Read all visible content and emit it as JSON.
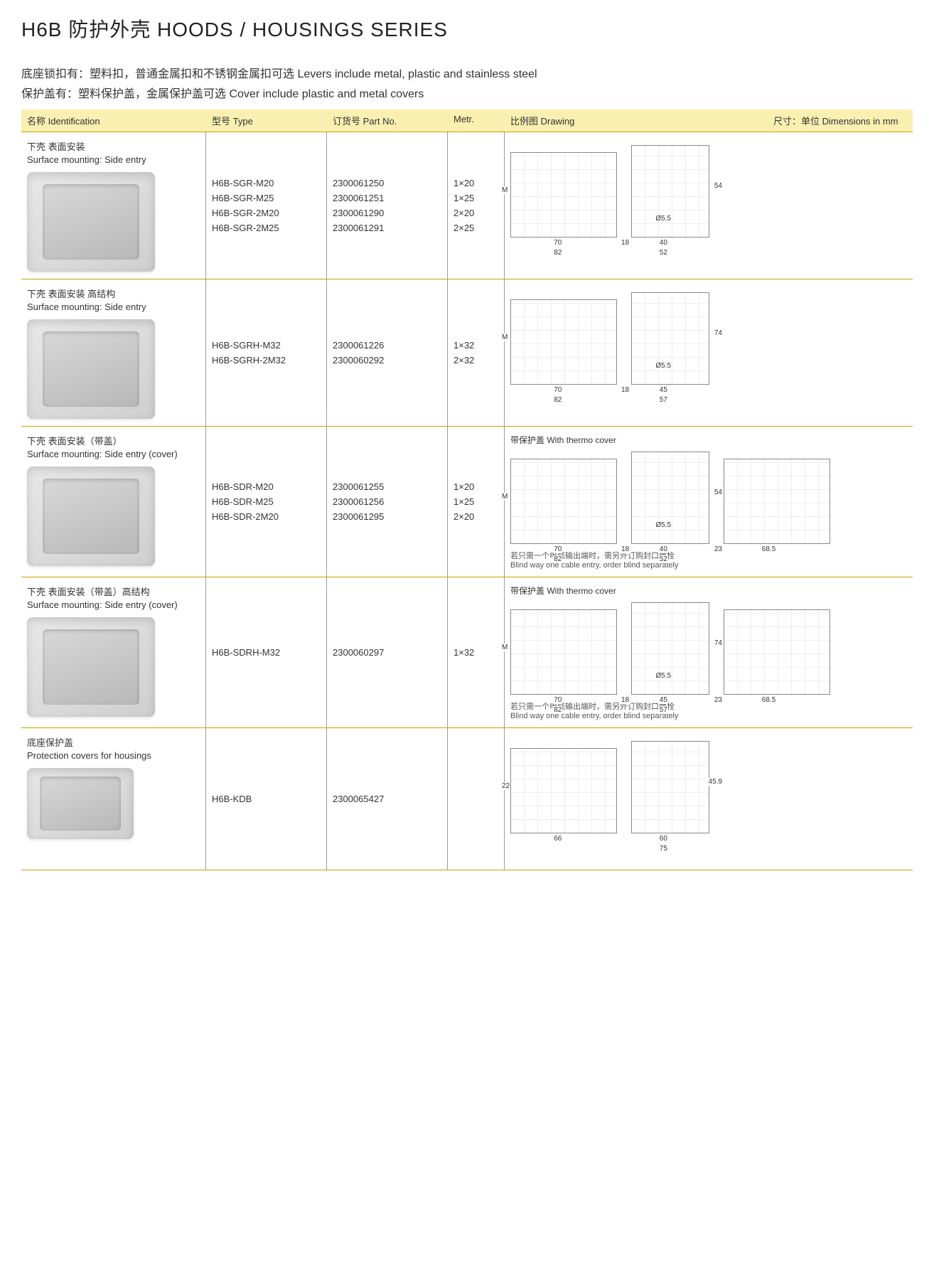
{
  "title": "H6B 防护外壳  HOODS / HOUSINGS SERIES",
  "subtitle1_cn": "底座锁扣有：塑料扣，普通金属扣和不锈钢金属扣可选",
  "subtitle1_en": "Levers include metal, plastic and stainless steel",
  "subtitle2_cn": "保护盖有：塑料保护盖，金属保护盖可选",
  "subtitle2_en": "Cover include plastic and metal covers",
  "columns": {
    "ident": "名称 Identification",
    "type": "型号 Type",
    "partno": "订货号 Part No.",
    "metr": "Metr.",
    "drawing": "比例图 Drawing",
    "dims": "尺寸：单位 Dimensions in mm"
  },
  "rows": [
    {
      "ident_cn": "下壳 表面安装",
      "ident_en": "Surface mounting: Side entry",
      "types": [
        "H6B-SGR-M20",
        "H6B-SGR-M25",
        "H6B-SGR-2M20",
        "H6B-SGR-2M25"
      ],
      "parts": [
        "2300061250",
        "2300061251",
        "2300061290",
        "2300061291"
      ],
      "metrs": [
        "1×20",
        "1×25",
        "2×20",
        "2×25"
      ],
      "thermo": "",
      "front_dims": {
        "w1": "70",
        "w2": "82",
        "h": "M"
      },
      "side_dims": {
        "w1": "40",
        "w2": "52",
        "offset": "18",
        "h": "54",
        "dia": "Ø5.5"
      },
      "note_cn": "",
      "note_en": ""
    },
    {
      "ident_cn": "下壳 表面安装 高结构",
      "ident_en": "Surface mounting: Side entry",
      "types": [
        "H6B-SGRH-M32",
        "H6B-SGRH-2M32"
      ],
      "parts": [
        "2300061226",
        "2300060292"
      ],
      "metrs": [
        "1×32",
        "2×32"
      ],
      "thermo": "",
      "front_dims": {
        "w1": "70",
        "w2": "82",
        "h": "M"
      },
      "side_dims": {
        "w1": "45",
        "w2": "57",
        "offset": "18",
        "h": "74",
        "dia": "Ø5.5"
      },
      "note_cn": "",
      "note_en": ""
    },
    {
      "ident_cn": "下壳 表面安装（带盖）",
      "ident_en": "Surface mounting: Side entry (cover)",
      "types": [
        "H6B-SDR-M20",
        "H6B-SDR-M25",
        "H6B-SDR-2M20"
      ],
      "parts": [
        "2300061255",
        "2300061256",
        "2300061295"
      ],
      "metrs": [
        "1×20",
        "1×25",
        "2×20"
      ],
      "thermo": "带保护盖 With thermo cover",
      "front_dims": {
        "w1": "70",
        "w2": "82",
        "h": "M"
      },
      "side_dims": {
        "w1": "40",
        "w2": "52",
        "offset": "18",
        "h": "54",
        "dia": "Ø5.5",
        "extra": "23",
        "open": "68.5"
      },
      "note_cn": "若只需一个电缆输出端时，需另外订购封口螺栓",
      "note_en": "Blind way one cable entry, order blind separately"
    },
    {
      "ident_cn": "下壳 表面安装（带盖）高结构",
      "ident_en": "Surface mounting: Side entry (cover)",
      "types": [
        "H6B-SDRH-M32"
      ],
      "parts": [
        "2300060297"
      ],
      "metrs": [
        "1×32"
      ],
      "thermo": "带保护盖 With thermo cover",
      "front_dims": {
        "w1": "70",
        "w2": "82",
        "h": "M"
      },
      "side_dims": {
        "w1": "45",
        "w2": "57",
        "offset": "18",
        "h": "74",
        "dia": "Ø5.5",
        "extra": "23",
        "open": "68.5"
      },
      "note_cn": "若只需一个电缆输出端时，需另外订购封口螺栓",
      "note_en": "Blind way one cable entry, order blind separately"
    },
    {
      "ident_cn": "底座保护盖",
      "ident_en": "Protection covers for housings",
      "types": [
        "H6B-KDB"
      ],
      "parts": [
        "2300065427"
      ],
      "metrs": [
        ""
      ],
      "thermo": "",
      "front_dims": {
        "w1": "66",
        "h": "22"
      },
      "side_dims": {
        "w1": "60",
        "w2": "75",
        "h": "45.9"
      },
      "note_cn": "",
      "note_en": "",
      "small": true
    }
  ],
  "colors": {
    "header_bg": "#f9efb0",
    "rule": "#c9a400",
    "text": "#333333"
  }
}
